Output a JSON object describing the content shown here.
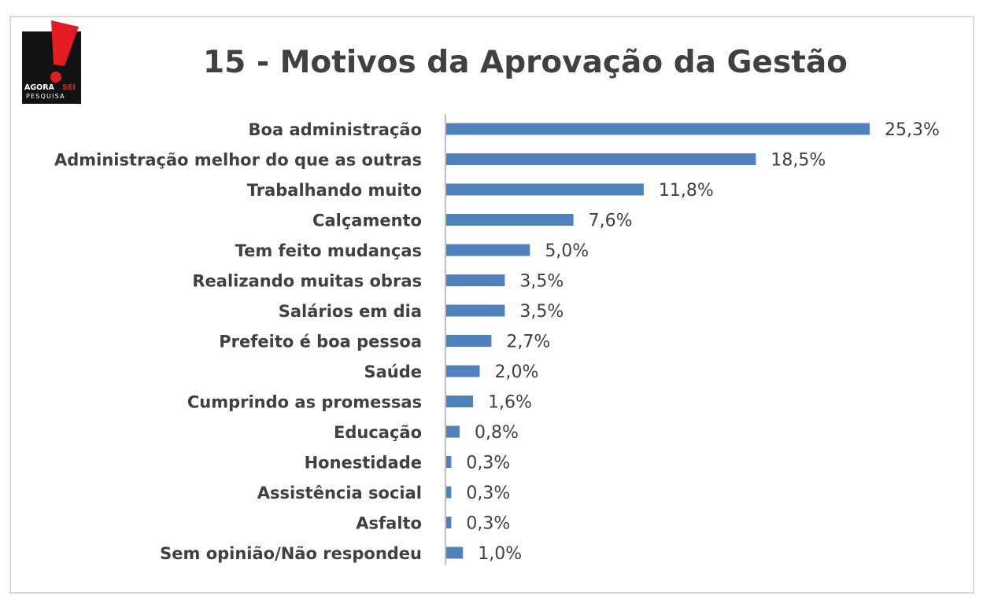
{
  "logo": {
    "brand_primary": "AGORA",
    "brand_accent": "SEI",
    "brand_sub": "PESQUISA",
    "accent_color": "#e21c21"
  },
  "title": "15 - Motivos da Aprovação da Gestão",
  "colors": {
    "bar": "#4f81bd",
    "text": "#404040",
    "axis": "#bfbfbf"
  },
  "chart_data": {
    "type": "bar",
    "orientation": "horizontal",
    "title": "15 - Motivos da Aprovação da Gestão",
    "xlabel": "",
    "ylabel": "",
    "categories": [
      "Boa administração",
      "Administração melhor do que as outras",
      "Trabalhando muito",
      "Calçamento",
      "Tem feito mudanças",
      "Realizando muitas obras",
      "Salários em dia",
      "Prefeito é boa pessoa",
      "Saúde",
      "Cumprindo as promessas",
      "Educação",
      "Honestidade",
      "Assistência social",
      "Asfalto",
      "Sem opinião/Não respondeu"
    ],
    "values": [
      25.3,
      18.5,
      11.8,
      7.6,
      5.0,
      3.5,
      3.5,
      2.7,
      2.0,
      1.6,
      0.8,
      0.3,
      0.3,
      0.3,
      1.0
    ],
    "labels": [
      "25,3%",
      "18,5%",
      "11,8%",
      "7,6%",
      "5,0%",
      "3,5%",
      "3,5%",
      "2,7%",
      "2,0%",
      "1,6%",
      "0,8%",
      "0,3%",
      "0,3%",
      "0,3%",
      "1,0%"
    ],
    "unit": "%",
    "xlim": [
      0,
      25.3
    ],
    "grid": false,
    "legend": "none"
  }
}
